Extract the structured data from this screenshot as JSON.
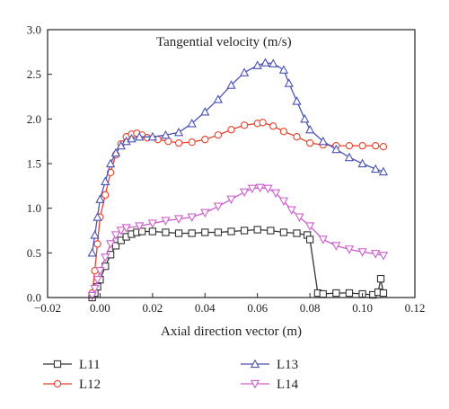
{
  "chart_data": {
    "type": "line",
    "title": "Tangential velocity (m/s)",
    "xlabel": "Axial direction vector (m)",
    "ylabel": "",
    "xlim": [
      -0.02,
      0.12
    ],
    "ylim": [
      0,
      3.0
    ],
    "x_ticks": [
      "−0.02",
      "0.00",
      "0.02",
      "0.04",
      "0.06",
      "0.08",
      "0.10",
      "0.12"
    ],
    "y_ticks": [
      "0.0",
      "0.5",
      "1.0",
      "1.5",
      "2.0",
      "2.5",
      "3.0"
    ],
    "grid": false,
    "legend_position": "below",
    "series": [
      {
        "name": "L11",
        "color": "#333333",
        "marker": "square",
        "x": [
          -0.003,
          -0.002,
          -0.001,
          0.0,
          0.002,
          0.004,
          0.006,
          0.008,
          0.01,
          0.012,
          0.014,
          0.016,
          0.02,
          0.025,
          0.03,
          0.035,
          0.04,
          0.045,
          0.05,
          0.055,
          0.06,
          0.065,
          0.07,
          0.075,
          0.079,
          0.08,
          0.083,
          0.085,
          0.09,
          0.095,
          0.1,
          0.104,
          0.106,
          0.107,
          0.108
        ],
        "y": [
          0.0,
          0.05,
          0.12,
          0.2,
          0.35,
          0.48,
          0.58,
          0.64,
          0.68,
          0.71,
          0.73,
          0.74,
          0.74,
          0.73,
          0.72,
          0.72,
          0.73,
          0.73,
          0.74,
          0.75,
          0.76,
          0.75,
          0.73,
          0.72,
          0.7,
          0.65,
          0.05,
          0.04,
          0.05,
          0.05,
          0.04,
          0.03,
          0.06,
          0.21,
          0.05
        ]
      },
      {
        "name": "L12",
        "color": "#e8402a",
        "marker": "circle",
        "x": [
          -0.003,
          -0.002,
          -0.001,
          0.0,
          0.002,
          0.004,
          0.006,
          0.008,
          0.01,
          0.012,
          0.014,
          0.016,
          0.018,
          0.022,
          0.026,
          0.03,
          0.035,
          0.04,
          0.045,
          0.05,
          0.055,
          0.06,
          0.062,
          0.066,
          0.07,
          0.075,
          0.08,
          0.085,
          0.09,
          0.095,
          0.1,
          0.105,
          0.108
        ],
        "y": [
          0.05,
          0.3,
          0.6,
          0.9,
          1.15,
          1.4,
          1.6,
          1.72,
          1.8,
          1.83,
          1.84,
          1.82,
          1.79,
          1.77,
          1.75,
          1.73,
          1.74,
          1.77,
          1.82,
          1.88,
          1.93,
          1.95,
          1.96,
          1.92,
          1.86,
          1.8,
          1.73,
          1.71,
          1.7,
          1.7,
          1.7,
          1.7,
          1.69
        ]
      },
      {
        "name": "L13",
        "color": "#4a52b5",
        "marker": "triangle-up",
        "x": [
          -0.003,
          -0.002,
          -0.001,
          0.0,
          0.002,
          0.004,
          0.006,
          0.008,
          0.01,
          0.012,
          0.015,
          0.02,
          0.025,
          0.03,
          0.035,
          0.04,
          0.045,
          0.05,
          0.055,
          0.06,
          0.063,
          0.066,
          0.07,
          0.072,
          0.075,
          0.078,
          0.08,
          0.085,
          0.09,
          0.095,
          0.1,
          0.105,
          0.108
        ],
        "y": [
          0.5,
          0.7,
          0.9,
          1.1,
          1.3,
          1.5,
          1.62,
          1.7,
          1.75,
          1.78,
          1.8,
          1.8,
          1.82,
          1.85,
          1.95,
          2.08,
          2.22,
          2.38,
          2.52,
          2.6,
          2.63,
          2.62,
          2.55,
          2.4,
          2.2,
          2.0,
          1.88,
          1.75,
          1.66,
          1.57,
          1.5,
          1.44,
          1.41
        ]
      },
      {
        "name": "L14",
        "color": "#cc5fcb",
        "marker": "triangle-down",
        "x": [
          -0.003,
          -0.002,
          -0.001,
          0.0,
          0.002,
          0.004,
          0.006,
          0.008,
          0.01,
          0.015,
          0.02,
          0.025,
          0.03,
          0.035,
          0.04,
          0.045,
          0.05,
          0.055,
          0.058,
          0.061,
          0.064,
          0.067,
          0.07,
          0.073,
          0.076,
          0.08,
          0.085,
          0.09,
          0.095,
          0.1,
          0.105,
          0.108
        ],
        "y": [
          0.02,
          0.1,
          0.2,
          0.3,
          0.45,
          0.6,
          0.7,
          0.75,
          0.78,
          0.8,
          0.83,
          0.86,
          0.88,
          0.9,
          0.95,
          1.02,
          1.1,
          1.18,
          1.22,
          1.23,
          1.22,
          1.17,
          1.08,
          0.98,
          0.9,
          0.8,
          0.65,
          0.58,
          0.54,
          0.51,
          0.49,
          0.47
        ]
      }
    ]
  }
}
